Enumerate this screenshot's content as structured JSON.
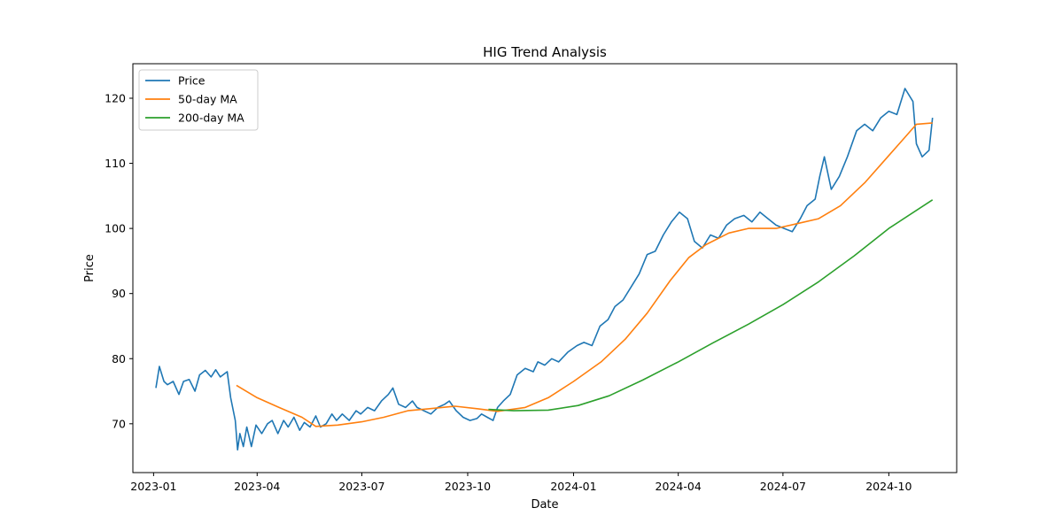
{
  "chart_data": {
    "type": "line",
    "title": "HIG Trend Analysis",
    "xlabel": "Date",
    "ylabel": "Price",
    "x_range": [
      "2022-12-14",
      "2024-11-29"
    ],
    "ylim": [
      62.5,
      125.3
    ],
    "x_ticks": [
      "2023-01",
      "2023-04",
      "2023-07",
      "2023-10",
      "2024-01",
      "2024-04",
      "2024-07",
      "2024-10"
    ],
    "y_ticks": [
      70,
      80,
      90,
      100,
      110,
      120
    ],
    "grid": false,
    "legend_position": "top-left",
    "series": [
      {
        "name": "Price",
        "color": "#1f77b4",
        "points": [
          [
            "2023-01-03",
            75.5
          ],
          [
            "2023-01-06",
            78.8
          ],
          [
            "2023-01-10",
            76.5
          ],
          [
            "2023-01-13",
            76.0
          ],
          [
            "2023-01-18",
            76.5
          ],
          [
            "2023-01-23",
            74.5
          ],
          [
            "2023-01-27",
            76.5
          ],
          [
            "2023-02-01",
            76.8
          ],
          [
            "2023-02-06",
            75.0
          ],
          [
            "2023-02-10",
            77.5
          ],
          [
            "2023-02-15",
            78.2
          ],
          [
            "2023-02-20",
            77.2
          ],
          [
            "2023-02-24",
            78.3
          ],
          [
            "2023-02-28",
            77.2
          ],
          [
            "2023-03-06",
            78.0
          ],
          [
            "2023-03-09",
            74.0
          ],
          [
            "2023-03-13",
            70.5
          ],
          [
            "2023-03-15",
            66.0
          ],
          [
            "2023-03-17",
            68.5
          ],
          [
            "2023-03-20",
            66.5
          ],
          [
            "2023-03-23",
            69.5
          ],
          [
            "2023-03-27",
            66.5
          ],
          [
            "2023-03-31",
            69.8
          ],
          [
            "2023-04-05",
            68.5
          ],
          [
            "2023-04-10",
            70.0
          ],
          [
            "2023-04-14",
            70.5
          ],
          [
            "2023-04-19",
            68.5
          ],
          [
            "2023-04-24",
            70.5
          ],
          [
            "2023-04-28",
            69.5
          ],
          [
            "2023-05-03",
            71.0
          ],
          [
            "2023-05-08",
            69.0
          ],
          [
            "2023-05-12",
            70.2
          ],
          [
            "2023-05-17",
            69.5
          ],
          [
            "2023-05-22",
            71.2
          ],
          [
            "2023-05-26",
            69.5
          ],
          [
            "2023-05-31",
            70.0
          ],
          [
            "2023-06-05",
            71.5
          ],
          [
            "2023-06-09",
            70.5
          ],
          [
            "2023-06-14",
            71.5
          ],
          [
            "2023-06-20",
            70.5
          ],
          [
            "2023-06-26",
            72.0
          ],
          [
            "2023-06-30",
            71.5
          ],
          [
            "2023-07-06",
            72.5
          ],
          [
            "2023-07-12",
            72.0
          ],
          [
            "2023-07-18",
            73.5
          ],
          [
            "2023-07-24",
            74.5
          ],
          [
            "2023-07-28",
            75.5
          ],
          [
            "2023-08-02",
            73.0
          ],
          [
            "2023-08-08",
            72.5
          ],
          [
            "2023-08-14",
            73.5
          ],
          [
            "2023-08-18",
            72.5
          ],
          [
            "2023-08-24",
            72.0
          ],
          [
            "2023-08-30",
            71.5
          ],
          [
            "2023-09-05",
            72.5
          ],
          [
            "2023-09-11",
            73.0
          ],
          [
            "2023-09-15",
            73.5
          ],
          [
            "2023-09-21",
            72.0
          ],
          [
            "2023-09-27",
            71.0
          ],
          [
            "2023-10-03",
            70.5
          ],
          [
            "2023-10-09",
            70.8
          ],
          [
            "2023-10-13",
            71.5
          ],
          [
            "2023-10-18",
            71.0
          ],
          [
            "2023-10-23",
            70.5
          ],
          [
            "2023-10-27",
            72.5
          ],
          [
            "2023-11-01",
            73.5
          ],
          [
            "2023-11-07",
            74.5
          ],
          [
            "2023-11-13",
            77.5
          ],
          [
            "2023-11-20",
            78.5
          ],
          [
            "2023-11-27",
            78.0
          ],
          [
            "2023-12-01",
            79.5
          ],
          [
            "2023-12-07",
            79.0
          ],
          [
            "2023-12-13",
            80.0
          ],
          [
            "2023-12-19",
            79.5
          ],
          [
            "2023-12-27",
            81.0
          ],
          [
            "2024-01-04",
            82.0
          ],
          [
            "2024-01-10",
            82.5
          ],
          [
            "2024-01-17",
            82.0
          ],
          [
            "2024-01-24",
            85.0
          ],
          [
            "2024-01-31",
            86.0
          ],
          [
            "2024-02-06",
            88.0
          ],
          [
            "2024-02-13",
            89.0
          ],
          [
            "2024-02-20",
            91.0
          ],
          [
            "2024-02-27",
            93.0
          ],
          [
            "2024-03-05",
            96.0
          ],
          [
            "2024-03-12",
            96.5
          ],
          [
            "2024-03-19",
            99.0
          ],
          [
            "2024-03-26",
            101.0
          ],
          [
            "2024-04-02",
            102.5
          ],
          [
            "2024-04-09",
            101.5
          ],
          [
            "2024-04-15",
            98.0
          ],
          [
            "2024-04-22",
            97.0
          ],
          [
            "2024-04-29",
            99.0
          ],
          [
            "2024-05-06",
            98.5
          ],
          [
            "2024-05-13",
            100.5
          ],
          [
            "2024-05-20",
            101.5
          ],
          [
            "2024-05-28",
            102.0
          ],
          [
            "2024-06-04",
            101.0
          ],
          [
            "2024-06-11",
            102.5
          ],
          [
            "2024-06-18",
            101.5
          ],
          [
            "2024-06-25",
            100.5
          ],
          [
            "2024-07-02",
            100.0
          ],
          [
            "2024-07-09",
            99.5
          ],
          [
            "2024-07-16",
            101.5
          ],
          [
            "2024-07-22",
            103.5
          ],
          [
            "2024-07-29",
            104.5
          ],
          [
            "2024-08-02",
            108.0
          ],
          [
            "2024-08-06",
            111.0
          ],
          [
            "2024-08-12",
            106.0
          ],
          [
            "2024-08-19",
            108.0
          ],
          [
            "2024-08-26",
            111.0
          ],
          [
            "2024-09-03",
            115.0
          ],
          [
            "2024-09-10",
            116.0
          ],
          [
            "2024-09-17",
            115.0
          ],
          [
            "2024-09-24",
            117.0
          ],
          [
            "2024-10-01",
            118.0
          ],
          [
            "2024-10-08",
            117.5
          ],
          [
            "2024-10-15",
            121.5
          ],
          [
            "2024-10-22",
            119.5
          ],
          [
            "2024-10-25",
            113.0
          ],
          [
            "2024-10-30",
            111.0
          ],
          [
            "2024-11-05",
            112.0
          ],
          [
            "2024-11-08",
            117.0
          ]
        ]
      },
      {
        "name": "50-day MA",
        "color": "#ff7f0e",
        "points": [
          [
            "2023-03-14",
            75.9
          ],
          [
            "2023-04-01",
            74.0
          ],
          [
            "2023-04-20",
            72.5
          ],
          [
            "2023-05-10",
            71.0
          ],
          [
            "2023-05-22",
            69.6
          ],
          [
            "2023-06-10",
            69.8
          ],
          [
            "2023-07-01",
            70.3
          ],
          [
            "2023-07-20",
            71.0
          ],
          [
            "2023-08-10",
            72.0
          ],
          [
            "2023-08-28",
            72.3
          ],
          [
            "2023-09-20",
            72.7
          ],
          [
            "2023-10-10",
            72.3
          ],
          [
            "2023-10-27",
            71.9
          ],
          [
            "2023-11-20",
            72.5
          ],
          [
            "2023-12-10",
            74.0
          ],
          [
            "2024-01-01",
            76.5
          ],
          [
            "2024-01-25",
            79.5
          ],
          [
            "2024-02-15",
            83.0
          ],
          [
            "2024-03-05",
            87.0
          ],
          [
            "2024-03-25",
            92.0
          ],
          [
            "2024-04-10",
            95.5
          ],
          [
            "2024-04-25",
            97.5
          ],
          [
            "2024-05-15",
            99.3
          ],
          [
            "2024-06-01",
            100.0
          ],
          [
            "2024-06-25",
            100.0
          ],
          [
            "2024-07-15",
            100.8
          ],
          [
            "2024-08-01",
            101.5
          ],
          [
            "2024-08-20",
            103.5
          ],
          [
            "2024-09-10",
            107.0
          ],
          [
            "2024-09-30",
            111.0
          ],
          [
            "2024-10-15",
            114.0
          ],
          [
            "2024-10-25",
            116.0
          ],
          [
            "2024-11-08",
            116.2
          ]
        ]
      },
      {
        "name": "200-day MA",
        "color": "#2ca02c",
        "points": [
          [
            "2023-10-19",
            72.2
          ],
          [
            "2023-11-10",
            72.0
          ],
          [
            "2023-12-10",
            72.1
          ],
          [
            "2024-01-05",
            72.8
          ],
          [
            "2024-02-01",
            74.3
          ],
          [
            "2024-03-01",
            76.7
          ],
          [
            "2024-04-01",
            79.5
          ],
          [
            "2024-05-01",
            82.4
          ],
          [
            "2024-06-01",
            85.3
          ],
          [
            "2024-07-01",
            88.3
          ],
          [
            "2024-08-01",
            91.8
          ],
          [
            "2024-09-01",
            95.8
          ],
          [
            "2024-10-01",
            100.0
          ],
          [
            "2024-11-08",
            104.4
          ]
        ]
      }
    ]
  }
}
